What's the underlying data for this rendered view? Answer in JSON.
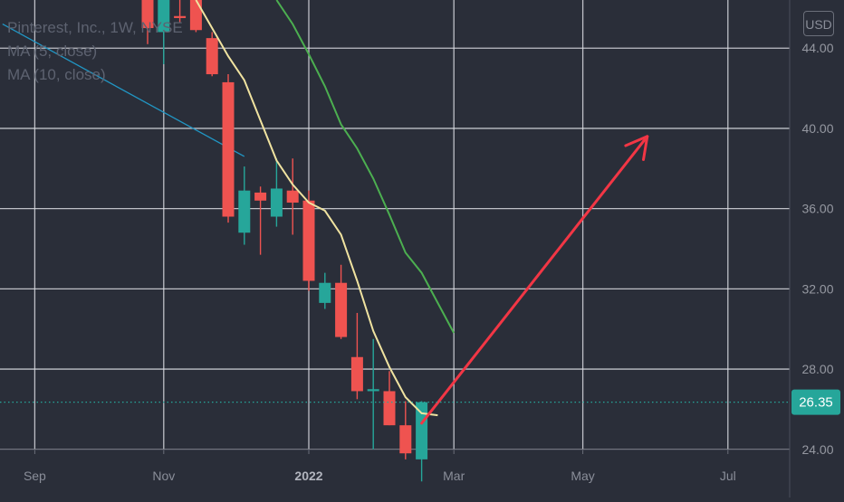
{
  "legend": {
    "title": "Pinterest, Inc., 1W, NYSE",
    "ma5": "MA (5, close)",
    "ma10": "MA (10, close)"
  },
  "currency": "USD",
  "colors": {
    "background": "#2a2e39",
    "grid": "#d8dae0",
    "up": "#26a69a",
    "down": "#ef5350",
    "ma5": "#f0e3a0",
    "ma10": "#4caf50",
    "trendline": "#2196c4",
    "arrow": "#f23645",
    "price_label_bg": "#26a69a"
  },
  "chart_data": {
    "type": "candlestick",
    "title": "Pinterest, Inc., 1W, NYSE",
    "x_tick_labels": [
      "Sep",
      "Nov",
      "2022",
      "Mar",
      "May",
      "Jul"
    ],
    "y_tick_labels": [
      "24.00",
      "28.00",
      "32.00",
      "36.00",
      "40.00",
      "44.00"
    ],
    "ylim": [
      21.6,
      46.4
    ],
    "last_price": "26.35",
    "grid": true,
    "candles": [
      {
        "week": "2021-10-25",
        "open": 47.0,
        "high": 47.2,
        "low": 44.2,
        "close": 45.0
      },
      {
        "week": "2021-11-01",
        "open": 44.8,
        "high": 47.8,
        "low": 43.2,
        "close": 47.5
      },
      {
        "week": "2021-11-08",
        "open": 45.6,
        "high": 47.2,
        "low": 45.3,
        "close": 45.5
      },
      {
        "week": "2021-11-15",
        "open": 47.8,
        "high": 48.0,
        "low": 44.8,
        "close": 44.9
      },
      {
        "week": "2021-11-22",
        "open": 44.5,
        "high": 44.8,
        "low": 42.6,
        "close": 42.7
      },
      {
        "week": "2021-11-29",
        "open": 42.3,
        "high": 42.7,
        "low": 35.3,
        "close": 35.6
      },
      {
        "week": "2021-12-06",
        "open": 34.8,
        "high": 38.1,
        "low": 34.2,
        "close": 36.9
      },
      {
        "week": "2021-12-13",
        "open": 36.8,
        "high": 37.1,
        "low": 33.7,
        "close": 36.4
      },
      {
        "week": "2021-12-20",
        "open": 35.6,
        "high": 38.5,
        "low": 35.1,
        "close": 37.0
      },
      {
        "week": "2021-12-27",
        "open": 36.9,
        "high": 38.5,
        "low": 34.7,
        "close": 36.3
      },
      {
        "week": "2022-01-03",
        "open": 36.4,
        "high": 36.9,
        "low": 31.9,
        "close": 32.4
      },
      {
        "week": "2022-01-10",
        "open": 31.3,
        "high": 32.8,
        "low": 31.0,
        "close": 32.3
      },
      {
        "week": "2022-01-17",
        "open": 32.3,
        "high": 33.2,
        "low": 29.5,
        "close": 29.6
      },
      {
        "week": "2022-01-24",
        "open": 28.6,
        "high": 30.8,
        "low": 26.5,
        "close": 26.9
      },
      {
        "week": "2022-01-31",
        "open": 26.9,
        "high": 29.5,
        "low": 24.0,
        "close": 27.0
      },
      {
        "week": "2022-02-07",
        "open": 26.9,
        "high": 27.9,
        "low": 25.2,
        "close": 25.2
      },
      {
        "week": "2022-02-14",
        "open": 25.2,
        "high": 26.4,
        "low": 23.5,
        "close": 23.8
      },
      {
        "week": "2022-02-21",
        "open": 23.5,
        "high": 26.4,
        "low": 22.4,
        "close": 26.35
      }
    ],
    "series": [
      {
        "name": "MA (5, close)",
        "color": "#f0e3a0",
        "points": [
          {
            "x": "2021-11-15",
            "y": 46.4
          },
          {
            "x": "2021-11-22",
            "y": 45.0
          },
          {
            "x": "2021-11-29",
            "y": 43.6
          },
          {
            "x": "2021-12-06",
            "y": 42.4
          },
          {
            "x": "2021-12-13",
            "y": 40.4
          },
          {
            "x": "2021-12-20",
            "y": 38.4
          },
          {
            "x": "2021-12-27",
            "y": 37.2
          },
          {
            "x": "2022-01-03",
            "y": 36.3
          },
          {
            "x": "2022-01-10",
            "y": 35.9
          },
          {
            "x": "2022-01-17",
            "y": 34.7
          },
          {
            "x": "2022-01-24",
            "y": 32.4
          },
          {
            "x": "2022-01-31",
            "y": 29.9
          },
          {
            "x": "2022-02-07",
            "y": 28.1
          },
          {
            "x": "2022-02-14",
            "y": 26.6
          },
          {
            "x": "2022-02-21",
            "y": 25.8
          },
          {
            "x": "2022-02-28",
            "y": 25.7
          }
        ]
      },
      {
        "name": "MA (10, close)",
        "color": "#4caf50",
        "points": [
          {
            "x": "2021-12-20",
            "y": 46.4
          },
          {
            "x": "2021-12-27",
            "y": 45.2
          },
          {
            "x": "2022-01-03",
            "y": 43.7
          },
          {
            "x": "2022-01-10",
            "y": 42.1
          },
          {
            "x": "2022-01-17",
            "y": 40.2
          },
          {
            "x": "2022-01-24",
            "y": 39.0
          },
          {
            "x": "2022-01-31",
            "y": 37.5
          },
          {
            "x": "2022-02-07",
            "y": 35.7
          },
          {
            "x": "2022-02-14",
            "y": 33.8
          },
          {
            "x": "2022-02-21",
            "y": 32.8
          },
          {
            "x": "2022-02-28",
            "y": 31.3
          },
          {
            "x": "2022-03-07",
            "y": 29.8
          }
        ]
      }
    ],
    "drawings": [
      {
        "type": "trendline",
        "color": "#2196c4",
        "points": [
          {
            "x": "2021-08-23",
            "y": 45.2
          },
          {
            "x": "2021-12-06",
            "y": 38.6
          }
        ]
      },
      {
        "type": "arrow",
        "color": "#f23645",
        "points": [
          {
            "x": "2022-02-21",
            "y": 25.3
          },
          {
            "x": "2022-05-30",
            "y": 39.6
          }
        ]
      }
    ]
  }
}
